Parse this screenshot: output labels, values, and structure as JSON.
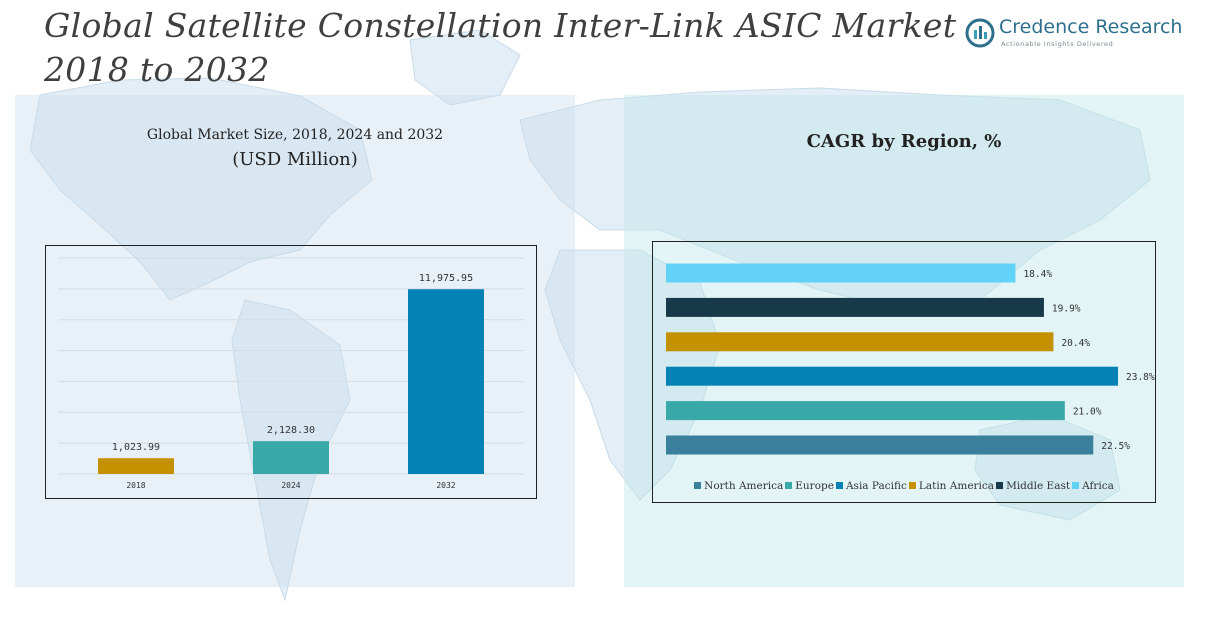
{
  "title": "Global Satellite Constellation Inter-Link ASIC Market 2018 to 2032",
  "logo": {
    "name": "Credence Research",
    "tagline": "Actionable Insights Delivered",
    "icon": "credence-research-logo-icon"
  },
  "colors": {
    "north_america": "#3a7f9c",
    "europe": "#38a8a8",
    "asia_pacific": "#0582b5",
    "latin_america": "#c49102",
    "middle_east": "#17394a",
    "africa": "#62d2f7",
    "bar_2018": "#c49102",
    "bar_2024": "#38a8a8",
    "bar_2032": "#0582b5"
  },
  "left_panel": {
    "title_line1": "Global Market Size, 2018, 2024 and 2032",
    "title_line2": "(USD Million)"
  },
  "right_panel": {
    "title": "CAGR by Region, %"
  },
  "chart_data": [
    {
      "type": "bar",
      "title": "Global Market Size, 2018, 2024 and 2032 (USD Million)",
      "categories": [
        "2018",
        "2024",
        "2032"
      ],
      "values": [
        1023.99,
        2128.3,
        11975.95
      ],
      "value_labels": [
        "1,023.99",
        "2,128.30",
        "11,975.95"
      ],
      "grid": true
    },
    {
      "type": "bar",
      "orientation": "horizontal",
      "title": "CAGR by Region, %",
      "categories": [
        "North America",
        "Europe",
        "Asia Pacific",
        "Latin America",
        "Middle East",
        "Africa"
      ],
      "values": [
        22.5,
        21.0,
        23.8,
        20.4,
        19.9,
        18.4
      ],
      "value_labels": [
        "22.5%",
        "21.0%",
        "23.8%",
        "20.4%",
        "19.9%",
        "18.4%"
      ],
      "legend_position": "bottom",
      "legend": [
        "North America",
        "Europe",
        "Asia Pacific",
        "Latin America",
        "Middle East",
        "Africa"
      ]
    }
  ]
}
